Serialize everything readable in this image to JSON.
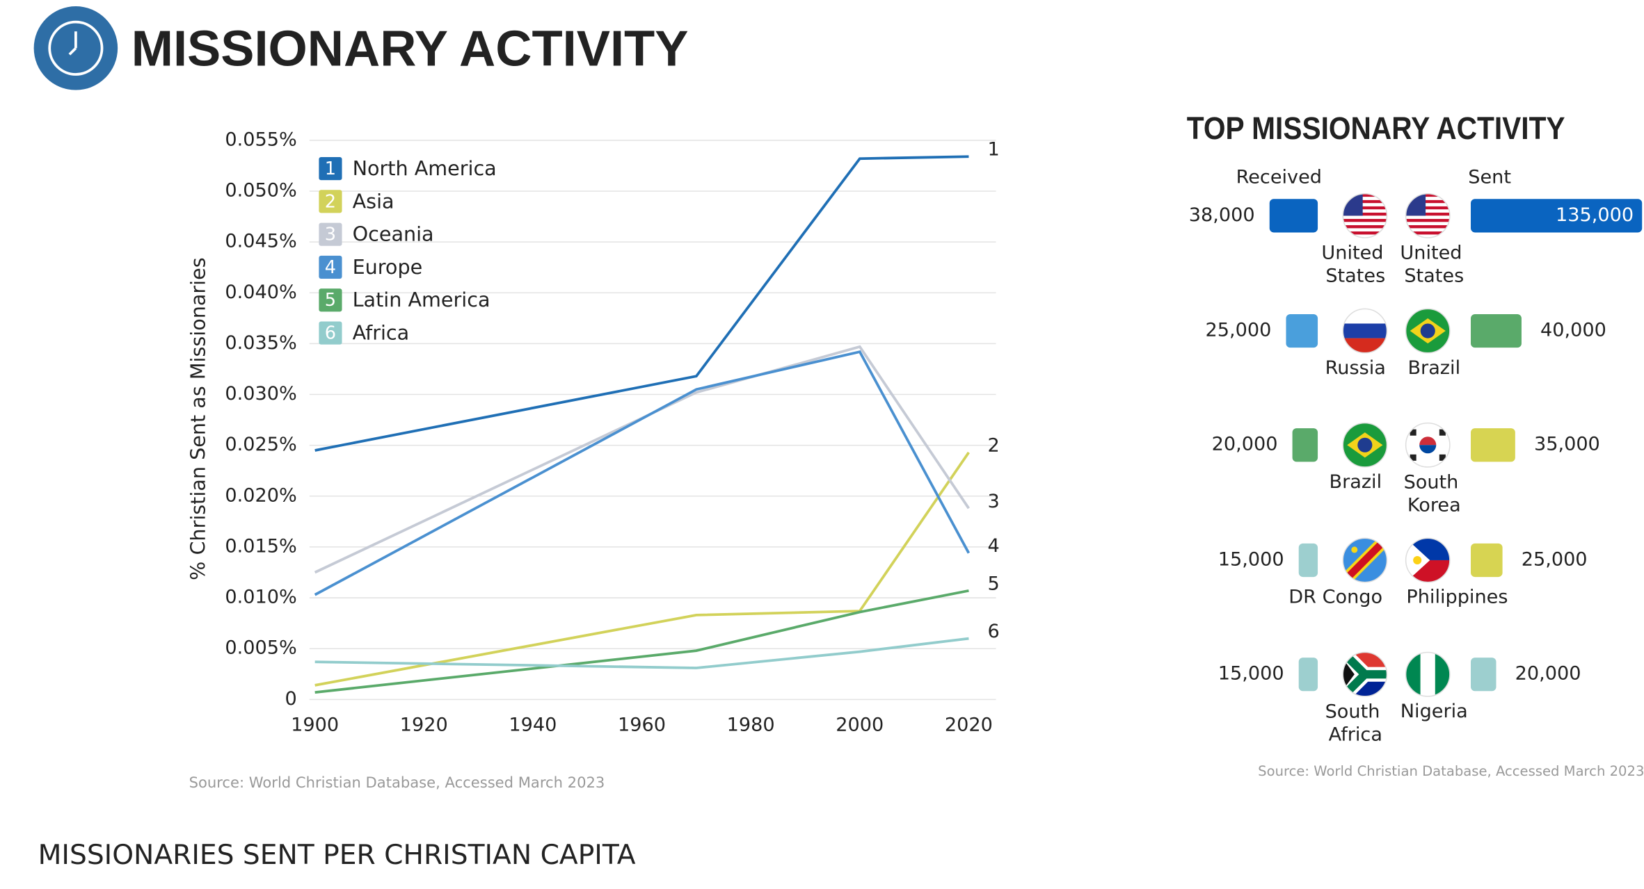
{
  "header": {
    "title": "MISSIONARY ACTIVITY",
    "footer": "MISSIONARIES SENT PER CHRISTIAN CAPITA"
  },
  "chart_data": [
    {
      "type": "line",
      "y_label": "% Christian Sent as Missionaries",
      "source": "Source: World Christian Database, Accessed March 2023",
      "x": [
        1900,
        1970,
        2000,
        2020
      ],
      "xlim": [
        1899,
        2025
      ],
      "xticks": [
        1900,
        1920,
        1940,
        1960,
        1980,
        2000,
        2020
      ],
      "ylim": [
        0,
        0.055
      ],
      "yticks": [
        0,
        {
          "value": 0.005,
          "label": "0.005%"
        },
        {
          "value": 0.01,
          "label": "0.010%"
        },
        {
          "value": 0.015,
          "label": "0.015%"
        },
        {
          "value": 0.02,
          "label": "0.020%"
        },
        {
          "value": 0.025,
          "label": "0.025%"
        },
        {
          "value": 0.03,
          "label": "0.030%"
        },
        {
          "value": 0.035,
          "label": "0.035%"
        },
        {
          "value": 0.04,
          "label": "0.040%"
        },
        {
          "value": 0.045,
          "label": "0.045%"
        },
        {
          "value": 0.05,
          "label": "0.050%"
        },
        {
          "value": 0.055,
          "label": "0.055%"
        }
      ],
      "grid": true,
      "series": [
        {
          "name": "North America",
          "label": "1",
          "color": "#1f6fb5",
          "values": [
            0.0245,
            0.0318,
            0.0532,
            0.0534
          ]
        },
        {
          "name": "Asia",
          "label": "2",
          "color": "#d2d25a",
          "values": [
            0.0014,
            0.0083,
            0.0087,
            0.0243
          ]
        },
        {
          "name": "Oceania",
          "label": "3",
          "color": "#c5cad5",
          "values": [
            0.0125,
            0.0302,
            0.0347,
            0.0188
          ]
        },
        {
          "name": "Europe",
          "label": "4",
          "color": "#4a90d0",
          "values": [
            0.0103,
            0.0305,
            0.0342,
            0.0144
          ]
        },
        {
          "name": "Latin America",
          "label": "5",
          "color": "#5aaa6a",
          "values": [
            0.0007,
            0.0048,
            0.0086,
            0.0107
          ]
        },
        {
          "name": "Africa",
          "label": "6",
          "color": "#92cccc",
          "values": [
            0.0037,
            0.0031,
            0.0047,
            0.006
          ]
        }
      ]
    },
    {
      "type": "butterfly",
      "title": "TOP MISSIONARY ACTIVITY",
      "source": "Source: World Christian Database, Accessed March 2023",
      "left_label": "Received",
      "right_label": "Sent",
      "left_countries": [
        "United States",
        "Russia",
        "Brazil",
        "DR Congo",
        "South Africa"
      ],
      "left_values": [
        38000,
        25000,
        20000,
        15000,
        15000
      ],
      "left_value_labels": [
        "38,000",
        "25,000",
        "20,000",
        "15,000",
        "15,000"
      ],
      "left_colors": [
        "#0a64c0",
        "#4a9fdc",
        "#5aaa6a",
        "#9dcfcf",
        "#9dcfcf"
      ],
      "right_countries": [
        "United States",
        "Brazil",
        "South Korea",
        "Philippines",
        "Nigeria"
      ],
      "right_values": [
        135000,
        40000,
        35000,
        25000,
        20000
      ],
      "right_value_labels": [
        "135,000",
        "40,000",
        "35,000",
        "25,000",
        "20,000"
      ],
      "right_colors": [
        "#0a64c0",
        "#5aaa6a",
        "#d7d452",
        "#d7d452",
        "#9dcfcf"
      ]
    }
  ]
}
